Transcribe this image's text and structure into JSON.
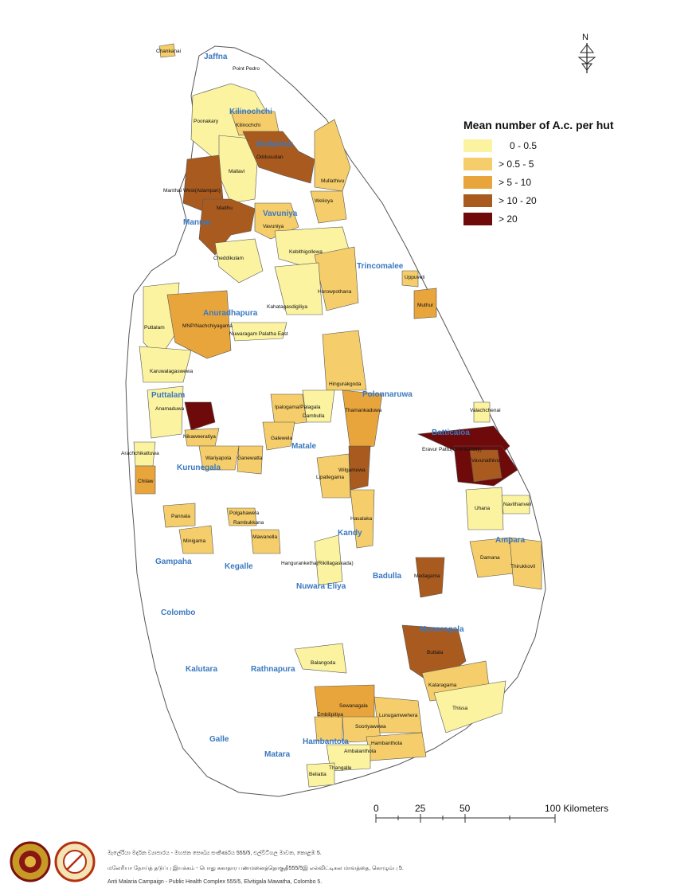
{
  "legend": {
    "title": "Mean number of A.c. per hut",
    "classes": [
      {
        "label": "0 - 0.5",
        "color": "#fbf3a0"
      },
      {
        "label": "> 0.5 - 5",
        "color": "#f5ce6b"
      },
      {
        "label": "> 5 - 10",
        "color": "#e8a53c"
      },
      {
        "label": "> 10 - 20",
        "color": "#a95a1e"
      },
      {
        "label": "> 20",
        "color": "#6e0a0a"
      }
    ]
  },
  "north_label": "N",
  "scale": {
    "ticks": [
      "0",
      "25",
      "50",
      "100 Kilometers"
    ]
  },
  "districts": {
    "jaffna": "Jaffna",
    "kilinochchi": "Kilinochchi",
    "mullaitivu": "Mullaitivu",
    "mannar": "Mannar",
    "vavuniya": "Vavuniya",
    "trincomalee": "Trincomalee",
    "anuradhapura": "Anuradhapura",
    "puttalam": "Puttalam",
    "polonnaruwa": "Polonnaruwa",
    "batticaloa": "Batticaloa",
    "kurunegala": "Kurunegala",
    "matale": "Matale",
    "kandy": "Kandy",
    "ampara": "Ampara",
    "gampaha": "Gampaha",
    "kegalle": "Kegalle",
    "nuwara_eliya": "Nuwara Eliya",
    "badulla": "Badulla",
    "colombo": "Colombo",
    "moneragala": "Moneragala",
    "kalutara": "Kalutara",
    "rathnapura": "Rathnapura",
    "galle": "Galle",
    "matara": "Matara",
    "hambantota": "Hambantota"
  },
  "moh": {
    "chankanai": "Chankanai",
    "point_pedro": "Point Pedro",
    "poonakary": "Poonakary",
    "kilinochchi": "Kilinochchi",
    "oddusudan": "Oddusudan",
    "mallavi": "Mallavi",
    "manthai_west": "Manthai West(Adampan)",
    "mullathivu": "Mullathivu",
    "welioya": "Welioya",
    "madhu": "Madhu",
    "vavuniya": "Vavuniya",
    "cheddikulam": "Cheddikulam",
    "kebithigollewa": "Kebithigollewa",
    "uppuveli": "Uppuveli",
    "horowpothana": "Horowpothana",
    "kahatagasdigiliya": "Kahatagasdigiliya",
    "muthur": "Muthur",
    "puttalam": "Puttalam",
    "mnp": "MNP/Nachchiyagama",
    "nuwaragam": "Nuwaragam Palatha East",
    "karuwalagaswewa": "Karuwalagaswewa",
    "hingurakgoda": "Hingurakgoda",
    "anamaduwa": "Anamaduwa",
    "ipalogama": "Ipalogama/Palagala",
    "dambulla": "Dambulla",
    "thamankaduwa": "Thamankaduwa",
    "valachchenai": "Valachchenai",
    "nikaweeratiya": "Nikaweeratiya",
    "galewela": "Galewela",
    "arachchikattuwa": "Arachchikattuwa",
    "wariyapola": "Wariyapola",
    "ganewatta": "Ganewatta",
    "wilgamuwa": "Wilgamuwa",
    "eravur": "Eravur Pattu(Chenkalady)",
    "vavunathivu": "Vavunathivu",
    "chilaw": "Chilaw",
    "lipallegama": "Lipallegama",
    "uhana": "Uhana",
    "navithanveli": "Navithanveli",
    "pannala": "Pannala",
    "polgahawela": "Polgahawela",
    "rambukkana": "Rambukkana",
    "hasalaka": "Hasalaka",
    "minuwangoda": "Minigama",
    "mawanella": "Mawanella",
    "damana": "Damana",
    "thirukkovil": "Thirukkovil",
    "hanguranketha": "Hanguranketha(Rikillagaskada)",
    "medagama": "Medagama",
    "buttala": "Buttala",
    "balangoda": "Balangoda",
    "kataragama": "Kataragama",
    "thissa": "Thissa",
    "sewanagala": "Sewanagala",
    "embilipitiya": "Embilipitiya",
    "lunugamwehera": "Lunugamwehera",
    "sooriyawewa": "Sooriyawewa",
    "hambanthota": "Hambanthota",
    "ambalanthota": "Ambalanthota",
    "thangalle": "Thangalle",
    "beliatta": "Beliatta"
  },
  "footer": {
    "line1": "මැලේරියා මර්දන ව්‍යාපාරය   - මහජන සෞඛ්‍ය සංකීර්ණය 555/5, එල්විටිගල මාවත, කොළඹ 5.",
    "line2": "மலேரியா நோய்த் தடுப்பு இயக்கம் - பொது சுகாதார பணமனைத்தொகுதி555/5இ எல்விட்டிகல மாவத்தை, கொழும்பு 5.",
    "line3": "Anti Malaria Campaign - Public Health Complex 555/5, Elvitigala Mawatha, Colombo 5."
  }
}
